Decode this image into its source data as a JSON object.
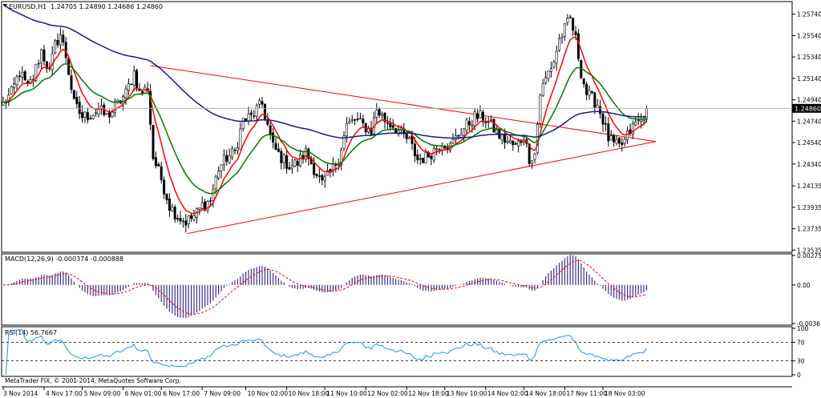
{
  "main_panel": {
    "symbol_label": "EURUSD,H1",
    "ohlc_label": "1.24705 1.24890 1.24686 1.24860",
    "current_price_label": "1.24860"
  },
  "macd_panel": {
    "label": "MACD(12,26,9) -0.000374 -0.000888",
    "ticks": [
      "0.002758",
      "0.00",
      "-0.003615"
    ]
  },
  "rsi_panel": {
    "label": "RSI(14) 56.7667",
    "ticks": [
      "100",
      "70",
      "30",
      "0"
    ]
  },
  "copyright": "MetaTrader FIX, © 2001-2014, MetaQuotes Software Corp.",
  "colors": {
    "candle": "#000000",
    "ma_fast": "#ff0000",
    "ma_mid": "#007a00",
    "ma_slow": "#1a1a8c",
    "trendline": "#ff0000",
    "macd_hist": "#3b2f8f",
    "macd_signal": "#ff0000",
    "rsi_line": "#1e90ff",
    "grid": "#000000"
  },
  "chart_data": {
    "type": "candlestick",
    "timeframe": "H1",
    "price_ylim": [
      1.2353,
      1.2585
    ],
    "price_ticks": [
      "1.25740",
      "1.25540",
      "1.25340",
      "1.25140",
      "1.24940",
      "1.24740",
      "1.24540",
      "1.24340",
      "1.24135",
      "1.23935",
      "1.23735",
      "1.23535"
    ],
    "x_labels": [
      "3 Nov 2014",
      "4 Nov 17:00",
      "5 Nov 09:00",
      "6 Nov 01:00",
      "6 Nov 17:00",
      "7 Nov 09:00",
      "10 Nov 02:00",
      "10 Nov 18:00",
      "11 Nov 10:00",
      "12 Nov 02:00",
      "12 Nov 18:00",
      "13 Nov 10:00",
      "14 Nov 02:00",
      "14 Nov 18:00",
      "17 Nov 11:00",
      "18 Nov 03:00"
    ],
    "price_keypoints": [
      [
        0,
        1.249
      ],
      [
        3,
        1.25
      ],
      [
        6,
        1.252
      ],
      [
        9,
        1.2505
      ],
      [
        11,
        1.2515
      ],
      [
        14,
        1.254
      ],
      [
        17,
        1.252
      ],
      [
        19,
        1.2545
      ],
      [
        21,
        1.2555
      ],
      [
        23,
        1.2535
      ],
      [
        26,
        1.249
      ],
      [
        29,
        1.2478
      ],
      [
        32,
        1.248
      ],
      [
        35,
        1.2485
      ],
      [
        38,
        1.2478
      ],
      [
        42,
        1.249
      ],
      [
        45,
        1.25
      ],
      [
        48,
        1.252
      ],
      [
        50,
        1.25
      ],
      [
        53,
        1.2505
      ],
      [
        55,
        1.244
      ],
      [
        58,
        1.242
      ],
      [
        61,
        1.2395
      ],
      [
        64,
        1.2385
      ],
      [
        67,
        1.238
      ],
      [
        70,
        1.2385
      ],
      [
        73,
        1.2395
      ],
      [
        76,
        1.24
      ],
      [
        79,
        1.243
      ],
      [
        82,
        1.244
      ],
      [
        85,
        1.2445
      ],
      [
        88,
        1.2475
      ],
      [
        91,
        1.2478
      ],
      [
        93,
        1.2485
      ],
      [
        95,
        1.249
      ],
      [
        97,
        1.247
      ],
      [
        99,
        1.245
      ],
      [
        102,
        1.244
      ],
      [
        105,
        1.2432
      ],
      [
        108,
        1.2435
      ],
      [
        111,
        1.2445
      ],
      [
        114,
        1.243
      ],
      [
        117,
        1.2415
      ],
      [
        120,
        1.2425
      ],
      [
        123,
        1.244
      ],
      [
        126,
        1.247
      ],
      [
        129,
        1.2475
      ],
      [
        132,
        1.247
      ],
      [
        135,
        1.2465
      ],
      [
        137,
        1.2485
      ],
      [
        140,
        1.2475
      ],
      [
        143,
        1.247
      ],
      [
        146,
        1.2462
      ],
      [
        149,
        1.2455
      ],
      [
        152,
        1.2438
      ],
      [
        155,
        1.244
      ],
      [
        158,
        1.2447
      ],
      [
        161,
        1.2455
      ],
      [
        164,
        1.245
      ],
      [
        167,
        1.2462
      ],
      [
        170,
        1.247
      ],
      [
        173,
        1.2478
      ],
      [
        176,
        1.2478
      ],
      [
        179,
        1.247
      ],
      [
        182,
        1.246
      ],
      [
        185,
        1.2455
      ],
      [
        188,
        1.245
      ],
      [
        191,
        1.246
      ],
      [
        193,
        1.244
      ],
      [
        195,
        1.2443
      ],
      [
        197,
        1.25
      ],
      [
        200,
        1.252
      ],
      [
        202,
        1.253
      ],
      [
        204,
        1.255
      ],
      [
        206,
        1.256
      ],
      [
        208,
        1.257
      ],
      [
        210,
        1.255
      ],
      [
        212,
        1.252
      ],
      [
        214,
        1.25
      ],
      [
        216,
        1.2495
      ],
      [
        218,
        1.249
      ],
      [
        220,
        1.2475
      ],
      [
        222,
        1.2458
      ],
      [
        224,
        1.2452
      ],
      [
        226,
        1.245
      ],
      [
        228,
        1.2455
      ],
      [
        230,
        1.2465
      ],
      [
        232,
        1.2472
      ],
      [
        234,
        1.2475
      ],
      [
        236,
        1.2486
      ]
    ],
    "candle_count": 237,
    "current_price": 1.2486,
    "trendlines": [
      {
        "x1": 54,
        "y1": 1.2526,
        "x2": 239.4,
        "y2": 1.2455
      },
      {
        "x1": 67.5,
        "y1": 1.2369,
        "x2": 239.4,
        "y2": 1.2455
      }
    ],
    "ma_periods": [
      8,
      21,
      100
    ],
    "macd": {
      "params": [
        12,
        26,
        9
      ],
      "value": -0.000374,
      "signal": -0.000888,
      "ylim": [
        -0.003615,
        0.002758
      ]
    },
    "rsi": {
      "period": 14,
      "value": 56.7667,
      "ylim": [
        0,
        100
      ],
      "levels": [
        70,
        30
      ]
    }
  }
}
